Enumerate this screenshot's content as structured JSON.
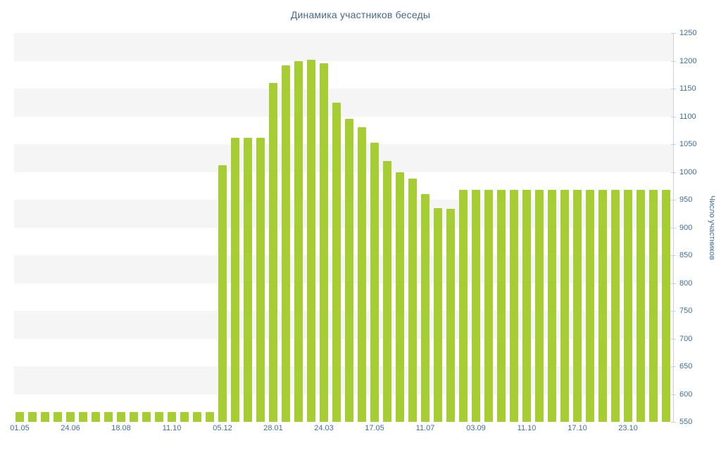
{
  "chart_data": {
    "type": "bar",
    "title": "Динамика участников беседы",
    "xlabel": "",
    "ylabel": "Число участников",
    "ylim": [
      550,
      1250
    ],
    "y_tick_step": 50,
    "y_ticks": [
      1250,
      1200,
      1150,
      1100,
      1050,
      1000,
      950,
      900,
      850,
      800,
      750,
      700,
      650,
      600,
      550
    ],
    "x_tick_labels": [
      "01.05",
      "24.06",
      "18.08",
      "11.10",
      "05.12",
      "28.01",
      "24.03",
      "17.05",
      "11.07",
      "03.09",
      "11.10",
      "17.10",
      "23.10"
    ],
    "x_tick_every": 4,
    "values": [
      568,
      568,
      568,
      568,
      568,
      568,
      568,
      568,
      568,
      568,
      568,
      568,
      568,
      568,
      568,
      568,
      1012,
      1062,
      1062,
      1062,
      1160,
      1192,
      1200,
      1202,
      1195,
      1125,
      1095,
      1080,
      1052,
      1020,
      1000,
      988,
      960,
      935,
      934,
      968,
      968,
      968,
      968,
      968,
      968,
      968,
      968,
      968,
      968,
      968,
      968,
      968,
      968,
      968,
      968,
      968
    ],
    "legend_position": "none",
    "grid": "horizontal-bands",
    "bar_color": "#a6ce34",
    "stripe_color": "#f5f5f5",
    "background_color": "#ffffff",
    "title_color": "#45688e",
    "axis_label_color": "#3f6e9e",
    "axis_line_color": "#c9d2dc"
  }
}
